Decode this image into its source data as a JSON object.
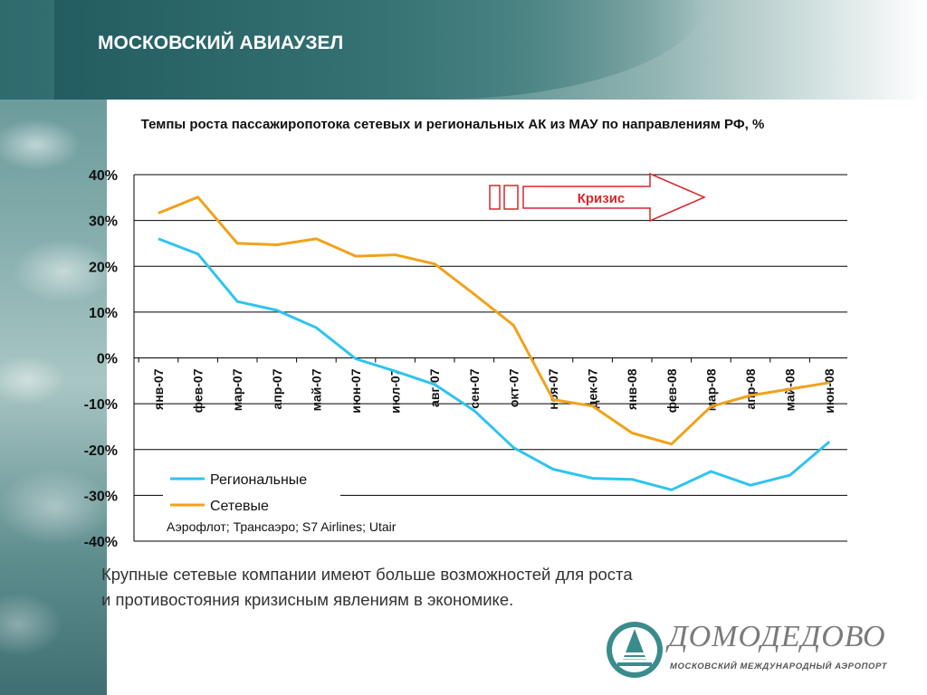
{
  "slide": {
    "title": "МОСКОВСКИЙ АВИАУЗЕЛ",
    "caption_line1": "Крупные сетевые компании имеют больше возможностей для роста",
    "caption_line2": "и противостояния кризисным явлениям в экономике."
  },
  "logo": {
    "name": "ДОМОДЕДОВО",
    "subtitle": "МОСКОВСКИЙ МЕЖДУНАРОДНЫЙ АЭРОПОРТ"
  },
  "colors": {
    "regional": "#2ec4ee",
    "network": "#f0a21c",
    "crisis_arrow": "#d9262c",
    "header": "#2f6b6e"
  },
  "chart_data": {
    "type": "line",
    "title": "Темпы роста пассажиропотока сетевых и региональных АК из МАУ по направлениям РФ, %",
    "categories": [
      "янв-07",
      "фев-07",
      "мар-07",
      "апр-07",
      "май-07",
      "июн-07",
      "июл-07",
      "авг-07",
      "сен-07",
      "окт-07",
      "ноя-07",
      "дек-07",
      "янв-08",
      "фев-08",
      "мар-08",
      "апр-08",
      "май-08",
      "июн-08"
    ],
    "series": [
      {
        "name": "Региональные",
        "color": "#2ec4ee",
        "values": [
          26,
          22.7,
          12.3,
          10.4,
          6.6,
          -0.2,
          -2.9,
          -5.8,
          -11.5,
          -19.6,
          -24.3,
          -26.3,
          -26.5,
          -28.8,
          -24.8,
          -27.8,
          -25.6,
          -18.3
        ]
      },
      {
        "name": "Сетевые",
        "color": "#f0a21c",
        "values": [
          31.6,
          35.1,
          25.0,
          24.7,
          26.0,
          22.2,
          22.5,
          20.5,
          13.9,
          7.1,
          -9.1,
          -10.5,
          -16.4,
          -18.8,
          -10.6,
          -8.2,
          -6.8,
          -5.4
        ]
      }
    ],
    "ylim": [
      -40,
      40
    ],
    "yticks": [
      "40%",
      "30%",
      "20%",
      "10%",
      "0%",
      "-10%",
      "-20%",
      "-30%",
      "-40%"
    ],
    "grid": true,
    "legend_position": "bottom-left",
    "legend_note": "Аэрофлот; Трансаэро; S7 Airlines; Utair",
    "annotation": {
      "label": "Кризис",
      "from_category": "окт-07",
      "to_category": "янв-08"
    }
  }
}
